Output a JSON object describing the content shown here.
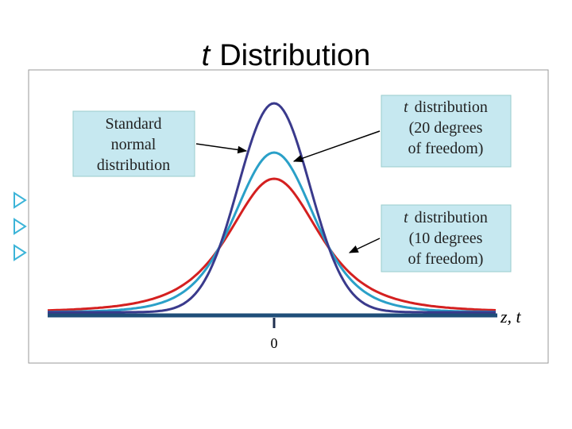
{
  "title": {
    "italic": "t",
    "text": "Distribution"
  },
  "boxes": [
    {
      "lines": [
        "Standard",
        "normal",
        "distribution"
      ]
    },
    {
      "italic": "t",
      "lines": [
        "distribution",
        "(20 degrees",
        "of freedom)"
      ]
    },
    {
      "italic": "t",
      "lines": [
        "distribution",
        "(10 degrees",
        "of freedom)"
      ]
    }
  ],
  "axis_label": "z, t",
  "tick_label": "0"
}
